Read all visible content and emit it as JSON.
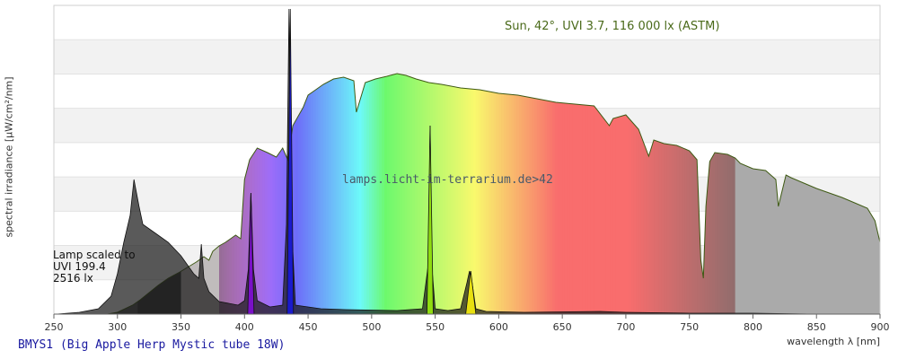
{
  "chart_data": {
    "type": "area",
    "title": "BMYS1 (Big Apple Herp Mystic tube 18W)",
    "xlabel": "wavelength λ [nm]",
    "ylabel": "spectral irradiance [µW/cm²/nm]",
    "xlim": [
      250,
      900
    ],
    "x_ticks": [
      "250",
      "300",
      "350",
      "400",
      "450",
      "500",
      "550",
      "600",
      "650",
      "700",
      "750",
      "800",
      "850",
      "900"
    ],
    "grid": true,
    "background_bands": "alternating light grey horizontal bands",
    "reference_annotation": "Sun, 42°, UVI 3.7, 116 000 lx (ASTM)",
    "lamp_annotation": [
      "Lamp scaled to",
      "UVI 199.4",
      "2516 lx"
    ],
    "watermark": "lamps.licht-im-terrarium.de>42",
    "series": [
      {
        "name": "Sun, 42°, UVI 3.7, 116 000 lx (ASTM)",
        "x": [
          292,
          300,
          306,
          312,
          318,
          325,
          332,
          340,
          348,
          355,
          362,
          368,
          372,
          375,
          380,
          385,
          390,
          393,
          397,
          400,
          404,
          410,
          418,
          425,
          430,
          434,
          438,
          442,
          446,
          450,
          456,
          462,
          470,
          478,
          486,
          488,
          495,
          503,
          512,
          520,
          527,
          535,
          545,
          555,
          570,
          585,
          600,
          615,
          630,
          645,
          660,
          675,
          687,
          690,
          700,
          710,
          718,
          722,
          730,
          740,
          750,
          756,
          759,
          761,
          763,
          766,
          770,
          780,
          786,
          790,
          800,
          810,
          818,
          820,
          826,
          830,
          840,
          850,
          860,
          870,
          880,
          890,
          896,
          900
        ],
        "y": [
          0,
          2,
          6,
          10,
          16,
          24,
          32,
          40,
          46,
          52,
          58,
          64,
          60,
          70,
          76,
          80,
          85,
          88,
          84,
          150,
          172,
          185,
          180,
          175,
          185,
          172,
          210,
          220,
          230,
          244,
          250,
          256,
          262,
          264,
          260,
          225,
          258,
          262,
          265,
          268,
          266,
          262,
          258,
          256,
          252,
          250,
          246,
          244,
          240,
          236,
          234,
          232,
          210,
          218,
          222,
          206,
          176,
          194,
          190,
          188,
          182,
          172,
          60,
          40,
          120,
          170,
          180,
          178,
          174,
          168,
          162,
          160,
          150,
          120,
          155,
          152,
          146,
          140,
          135,
          130,
          124,
          118,
          104,
          80
        ]
      },
      {
        "name": "BMYS1 (Big Apple Herp Mystic tube 18W)",
        "x": [
          252,
          270,
          285,
          295,
          300,
          305,
          310,
          313,
          315,
          317,
          320,
          325,
          330,
          340,
          350,
          360,
          364,
          366,
          368,
          372,
          380,
          395,
          400,
          403,
          405,
          407,
          410,
          420,
          430,
          433,
          435,
          437,
          440,
          460,
          480,
          520,
          540,
          545,
          546,
          547,
          550,
          560,
          570,
          575,
          577,
          579,
          582,
          590,
          620,
          680,
          700,
          750,
          800,
          850,
          900
        ],
        "y": [
          0,
          2,
          6,
          20,
          45,
          80,
          110,
          150,
          135,
          120,
          100,
          95,
          90,
          80,
          65,
          45,
          40,
          78,
          40,
          25,
          14,
          10,
          15,
          50,
          135,
          50,
          15,
          8,
          10,
          100,
          340,
          100,
          10,
          6,
          5,
          4,
          6,
          60,
          210,
          60,
          6,
          4,
          6,
          35,
          48,
          35,
          6,
          3,
          2,
          3,
          2,
          1,
          1,
          0,
          0
        ]
      }
    ]
  }
}
